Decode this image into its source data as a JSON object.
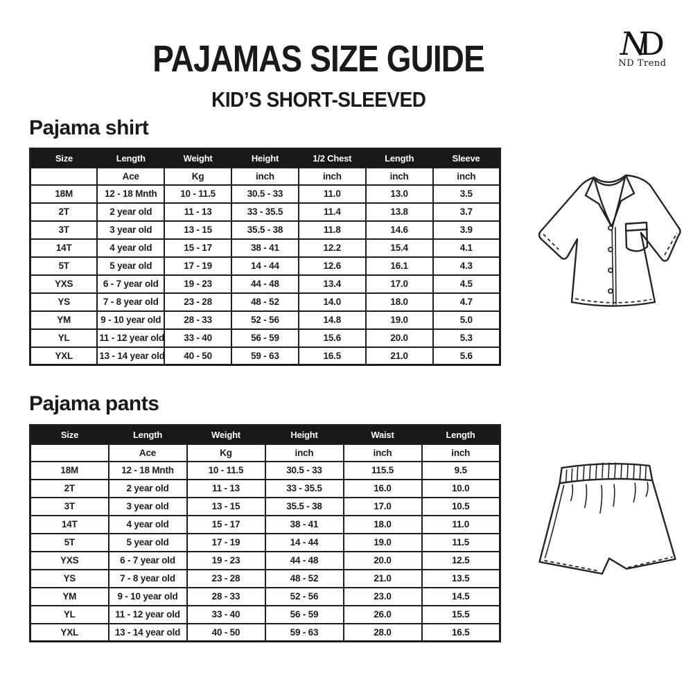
{
  "page": {
    "title": "PAJAMAS SIZE GUIDE",
    "subtitle": "KID’S SHORT-SLEEVED"
  },
  "logo": {
    "monogram_n": "N",
    "monogram_d": "D",
    "text": "ND Trend"
  },
  "colors": {
    "table_header_bg": "#181818",
    "table_border": "#1e1e1e",
    "text": "#1a1a1a",
    "background": "#ffffff"
  },
  "icons": {
    "shirt_illustration": "pajama-shirt-line-drawing",
    "pants_illustration": "pajama-shorts-line-drawing"
  },
  "shirt": {
    "heading": "Pajama shirt",
    "columns": [
      "Size",
      "Length",
      "Weight",
      "Height",
      "1/2 Chest",
      "Length",
      "Sleeve"
    ],
    "units": [
      "",
      "Ace",
      "Kg",
      "inch",
      "inch",
      "inch",
      "inch"
    ],
    "rows": [
      [
        "18M",
        "12 - 18 Mnth",
        "10 - 11.5",
        "30.5 - 33",
        "11.0",
        "13.0",
        "3.5"
      ],
      [
        "2T",
        "2 year old",
        "11 - 13",
        "33 - 35.5",
        "11.4",
        "13.8",
        "3.7"
      ],
      [
        "3T",
        "3 year old",
        "13 - 15",
        "35.5 - 38",
        "11.8",
        "14.6",
        "3.9"
      ],
      [
        "14T",
        "4 year old",
        "15 - 17",
        "38 - 41",
        "12.2",
        "15.4",
        "4.1"
      ],
      [
        "5T",
        "5 year old",
        "17 - 19",
        "14 - 44",
        "12.6",
        "16.1",
        "4.3"
      ],
      [
        "YXS",
        "6 - 7 year old",
        "19 - 23",
        "44 - 48",
        "13.4",
        "17.0",
        "4.5"
      ],
      [
        "YS",
        "7 - 8 year old",
        "23 - 28",
        "48 - 52",
        "14.0",
        "18.0",
        "4.7"
      ],
      [
        "YM",
        "9 - 10 year old",
        "28 - 33",
        "52 - 56",
        "14.8",
        "19.0",
        "5.0"
      ],
      [
        "YL",
        "11 - 12 year old",
        "33 - 40",
        "56 - 59",
        "15.6",
        "20.0",
        "5.3"
      ],
      [
        "YXL",
        "13 - 14 year old",
        "40 - 50",
        "59 - 63",
        "16.5",
        "21.0",
        "5.6"
      ]
    ]
  },
  "pants": {
    "heading": "Pajama pants",
    "columns": [
      "Size",
      "Length",
      "Weight",
      "Height",
      "Waist",
      "Length"
    ],
    "units": [
      "",
      "Ace",
      "Kg",
      "inch",
      "inch",
      "inch"
    ],
    "rows": [
      [
        "18M",
        "12 - 18 Mnth",
        "10 - 11.5",
        "30.5 - 33",
        "115.5",
        "9.5"
      ],
      [
        "2T",
        "2 year old",
        "11 - 13",
        "33 - 35.5",
        "16.0",
        "10.0"
      ],
      [
        "3T",
        "3 year old",
        "13 - 15",
        "35.5 - 38",
        "17.0",
        "10.5"
      ],
      [
        "14T",
        "4 year old",
        "15 - 17",
        "38 - 41",
        "18.0",
        "11.0"
      ],
      [
        "5T",
        "5 year old",
        "17 - 19",
        "14 - 44",
        "19.0",
        "11.5"
      ],
      [
        "YXS",
        "6 - 7 year old",
        "19 - 23",
        "44 - 48",
        "20.0",
        "12.5"
      ],
      [
        "YS",
        "7 - 8 year old",
        "23 - 28",
        "48 - 52",
        "21.0",
        "13.5"
      ],
      [
        "YM",
        "9 - 10 year old",
        "28 - 33",
        "52 - 56",
        "23.0",
        "14.5"
      ],
      [
        "YL",
        "11 - 12 year old",
        "33 - 40",
        "56 - 59",
        "26.0",
        "15.5"
      ],
      [
        "YXL",
        "13 - 14 year old",
        "40 - 50",
        "59 - 63",
        "28.0",
        "16.5"
      ]
    ]
  }
}
